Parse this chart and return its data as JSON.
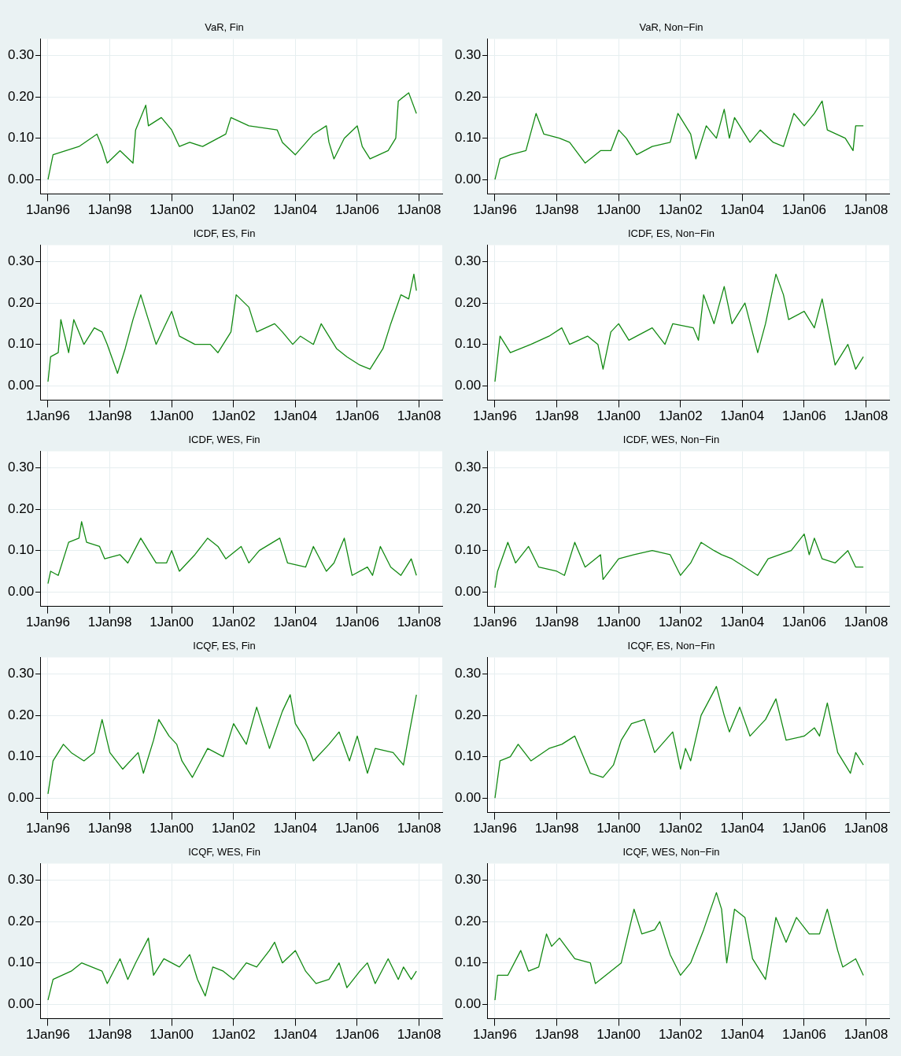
{
  "chart_data": [
    {
      "type": "line",
      "title": "VaR, Fin",
      "color": "#138a13",
      "grid": true,
      "xlim": [
        "1995-10-01",
        "2008-10-01"
      ],
      "ylim": [
        -0.035,
        0.34
      ],
      "xticks": [
        {
          "value": "1996-01-01",
          "label": "1Jan96"
        },
        {
          "value": "1998-01-01",
          "label": "1Jan98"
        },
        {
          "value": "2000-01-01",
          "label": "1Jan00"
        },
        {
          "value": "2002-01-01",
          "label": "1Jan02"
        },
        {
          "value": "2004-01-01",
          "label": "1Jan04"
        },
        {
          "value": "2006-01-01",
          "label": "1Jan06"
        },
        {
          "value": "2008-01-01",
          "label": "1Jan08"
        }
      ],
      "yticks": [
        {
          "value": 0,
          "label": "0.00"
        },
        {
          "value": 0.1,
          "label": "0.10"
        },
        {
          "value": 0.2,
          "label": "0.20"
        },
        {
          "value": 0.3,
          "label": "0.30"
        }
      ],
      "x": [
        "1996-01",
        "1996-03",
        "1997-01",
        "1997-08",
        "1997-10",
        "1997-12",
        "1998-05",
        "1998-10",
        "1998-11",
        "1999-03",
        "1999-04",
        "1999-09",
        "2000-01",
        "2000-04",
        "2000-08",
        "2001-01",
        "2001-10",
        "2001-12",
        "2002-07",
        "2003-06",
        "2003-08",
        "2004-01",
        "2004-08",
        "2005-01",
        "2005-02",
        "2005-04",
        "2005-08",
        "2006-01",
        "2006-03",
        "2006-06",
        "2007-01",
        "2007-04",
        "2007-05",
        "2007-09",
        "2007-12"
      ],
      "values": [
        0.0,
        0.06,
        0.08,
        0.11,
        0.08,
        0.04,
        0.07,
        0.04,
        0.12,
        0.18,
        0.13,
        0.15,
        0.12,
        0.08,
        0.09,
        0.08,
        0.11,
        0.15,
        0.13,
        0.12,
        0.09,
        0.06,
        0.11,
        0.13,
        0.09,
        0.05,
        0.1,
        0.13,
        0.08,
        0.05,
        0.07,
        0.1,
        0.19,
        0.21,
        0.16
      ]
    },
    {
      "type": "line",
      "title": "VaR, Non−Fin",
      "color": "#138a13",
      "grid": true,
      "xlim": [
        "1995-10-01",
        "2008-10-01"
      ],
      "ylim": [
        -0.035,
        0.34
      ],
      "xticks": [
        {
          "value": "1996-01-01",
          "label": "1Jan96"
        },
        {
          "value": "1998-01-01",
          "label": "1Jan98"
        },
        {
          "value": "2000-01-01",
          "label": "1Jan00"
        },
        {
          "value": "2002-01-01",
          "label": "1Jan02"
        },
        {
          "value": "2004-01-01",
          "label": "1Jan04"
        },
        {
          "value": "2006-01-01",
          "label": "1Jan06"
        },
        {
          "value": "2008-01-01",
          "label": "1Jan08"
        }
      ],
      "yticks": [
        {
          "value": 0,
          "label": "0.00"
        },
        {
          "value": 0.1,
          "label": "0.10"
        },
        {
          "value": 0.2,
          "label": "0.20"
        },
        {
          "value": 0.3,
          "label": "0.30"
        }
      ],
      "x": [
        "1996-01",
        "1996-03",
        "1996-07",
        "1997-01",
        "1997-05",
        "1997-08",
        "1998-02",
        "1998-06",
        "1998-12",
        "1999-06",
        "1999-10",
        "2000-01",
        "2000-04",
        "2000-08",
        "2001-02",
        "2001-09",
        "2001-12",
        "2002-05",
        "2002-07",
        "2002-11",
        "2003-03",
        "2003-06",
        "2003-08",
        "2003-10",
        "2004-04",
        "2004-08",
        "2005-01",
        "2005-05",
        "2005-09",
        "2006-01",
        "2006-05",
        "2006-08",
        "2006-10",
        "2007-05",
        "2007-08",
        "2007-09",
        "2007-12"
      ],
      "values": [
        0.0,
        0.05,
        0.06,
        0.07,
        0.16,
        0.11,
        0.1,
        0.09,
        0.04,
        0.07,
        0.07,
        0.12,
        0.1,
        0.06,
        0.08,
        0.09,
        0.16,
        0.11,
        0.05,
        0.13,
        0.1,
        0.17,
        0.1,
        0.15,
        0.09,
        0.12,
        0.09,
        0.08,
        0.16,
        0.13,
        0.16,
        0.19,
        0.12,
        0.1,
        0.07,
        0.13,
        0.13
      ]
    },
    {
      "type": "line",
      "title": "ICDF, ES, Fin",
      "color": "#138a13",
      "grid": true,
      "xlim": [
        "1995-10-01",
        "2008-10-01"
      ],
      "ylim": [
        -0.035,
        0.34
      ],
      "xticks": [
        {
          "value": "1996-01-01",
          "label": "1Jan96"
        },
        {
          "value": "1998-01-01",
          "label": "1Jan98"
        },
        {
          "value": "2000-01-01",
          "label": "1Jan00"
        },
        {
          "value": "2002-01-01",
          "label": "1Jan02"
        },
        {
          "value": "2004-01-01",
          "label": "1Jan04"
        },
        {
          "value": "2006-01-01",
          "label": "1Jan06"
        },
        {
          "value": "2008-01-01",
          "label": "1Jan08"
        }
      ],
      "yticks": [
        {
          "value": 0,
          "label": "0.00"
        },
        {
          "value": 0.1,
          "label": "0.10"
        },
        {
          "value": 0.2,
          "label": "0.20"
        },
        {
          "value": 0.3,
          "label": "0.30"
        }
      ],
      "x": [
        "1996-01",
        "1996-02",
        "1996-05",
        "1996-06",
        "1996-09",
        "1996-11",
        "1997-03",
        "1997-07",
        "1997-10",
        "1997-12",
        "1998-04",
        "1998-07",
        "1998-10",
        "1999-01",
        "1999-03",
        "1999-07",
        "2000-01",
        "2000-04",
        "2000-10",
        "2001-04",
        "2001-07",
        "2001-12",
        "2002-02",
        "2002-07",
        "2002-10",
        "2003-05",
        "2003-08",
        "2003-12",
        "2004-03",
        "2004-08",
        "2004-11",
        "2005-05",
        "2005-09",
        "2006-02",
        "2006-06",
        "2006-11",
        "2007-02",
        "2007-06",
        "2007-09",
        "2007-11",
        "2007-12"
      ],
      "values": [
        0.01,
        0.07,
        0.08,
        0.16,
        0.08,
        0.16,
        0.1,
        0.14,
        0.13,
        0.1,
        0.03,
        0.09,
        0.16,
        0.22,
        0.18,
        0.1,
        0.18,
        0.12,
        0.1,
        0.1,
        0.08,
        0.13,
        0.22,
        0.19,
        0.13,
        0.15,
        0.13,
        0.1,
        0.12,
        0.1,
        0.15,
        0.09,
        0.07,
        0.05,
        0.04,
        0.09,
        0.15,
        0.22,
        0.21,
        0.27,
        0.23
      ]
    },
    {
      "type": "line",
      "title": "ICDF, ES, Non−Fin",
      "color": "#138a13",
      "grid": true,
      "xlim": [
        "1995-10-01",
        "2008-10-01"
      ],
      "ylim": [
        -0.035,
        0.34
      ],
      "xticks": [
        {
          "value": "1996-01-01",
          "label": "1Jan96"
        },
        {
          "value": "1998-01-01",
          "label": "1Jan98"
        },
        {
          "value": "2000-01-01",
          "label": "1Jan00"
        },
        {
          "value": "2002-01-01",
          "label": "1Jan02"
        },
        {
          "value": "2004-01-01",
          "label": "1Jan04"
        },
        {
          "value": "2006-01-01",
          "label": "1Jan06"
        },
        {
          "value": "2008-01-01",
          "label": "1Jan08"
        }
      ],
      "yticks": [
        {
          "value": 0,
          "label": "0.00"
        },
        {
          "value": 0.1,
          "label": "0.10"
        },
        {
          "value": 0.2,
          "label": "0.20"
        },
        {
          "value": 0.3,
          "label": "0.30"
        }
      ],
      "x": [
        "1996-01",
        "1996-03",
        "1996-07",
        "1997-03",
        "1997-10",
        "1998-03",
        "1998-06",
        "1999-01",
        "1999-05",
        "1999-07",
        "1999-10",
        "2000-01",
        "2000-05",
        "2001-02",
        "2001-07",
        "2001-10",
        "2002-06",
        "2002-08",
        "2002-10",
        "2003-02",
        "2003-06",
        "2003-09",
        "2004-02",
        "2004-07",
        "2004-10",
        "2005-02",
        "2005-05",
        "2005-07",
        "2006-01",
        "2006-05",
        "2006-08",
        "2007-01",
        "2007-06",
        "2007-09",
        "2007-12"
      ],
      "values": [
        0.01,
        0.12,
        0.08,
        0.1,
        0.12,
        0.14,
        0.1,
        0.12,
        0.1,
        0.04,
        0.13,
        0.15,
        0.11,
        0.14,
        0.1,
        0.15,
        0.14,
        0.11,
        0.22,
        0.15,
        0.24,
        0.15,
        0.2,
        0.08,
        0.15,
        0.27,
        0.22,
        0.16,
        0.18,
        0.14,
        0.21,
        0.05,
        0.1,
        0.04,
        0.07
      ]
    },
    {
      "type": "line",
      "title": "ICDF, WES, Fin",
      "color": "#138a13",
      "grid": true,
      "xlim": [
        "1995-10-01",
        "2008-10-01"
      ],
      "ylim": [
        -0.035,
        0.34
      ],
      "xticks": [
        {
          "value": "1996-01-01",
          "label": "1Jan96"
        },
        {
          "value": "1998-01-01",
          "label": "1Jan98"
        },
        {
          "value": "2000-01-01",
          "label": "1Jan00"
        },
        {
          "value": "2002-01-01",
          "label": "1Jan02"
        },
        {
          "value": "2004-01-01",
          "label": "1Jan04"
        },
        {
          "value": "2006-01-01",
          "label": "1Jan06"
        },
        {
          "value": "2008-01-01",
          "label": "1Jan08"
        }
      ],
      "yticks": [
        {
          "value": 0,
          "label": "0.00"
        },
        {
          "value": 0.1,
          "label": "0.10"
        },
        {
          "value": 0.2,
          "label": "0.20"
        },
        {
          "value": 0.3,
          "label": "0.30"
        }
      ],
      "x": [
        "1996-01",
        "1996-02",
        "1996-05",
        "1996-09",
        "1997-01",
        "1997-02",
        "1997-04",
        "1997-09",
        "1997-11",
        "1998-05",
        "1998-08",
        "1999-01",
        "1999-04",
        "1999-07",
        "1999-11",
        "2000-01",
        "2000-04",
        "2000-10",
        "2001-03",
        "2001-07",
        "2001-10",
        "2002-04",
        "2002-07",
        "2002-11",
        "2003-07",
        "2003-10",
        "2004-05",
        "2004-08",
        "2005-01",
        "2005-04",
        "2005-08",
        "2005-11",
        "2006-05",
        "2006-07",
        "2006-10",
        "2007-02",
        "2007-06",
        "2007-10",
        "2007-12"
      ],
      "values": [
        0.02,
        0.05,
        0.04,
        0.12,
        0.13,
        0.17,
        0.12,
        0.11,
        0.08,
        0.09,
        0.07,
        0.13,
        0.1,
        0.07,
        0.07,
        0.1,
        0.05,
        0.09,
        0.13,
        0.11,
        0.08,
        0.11,
        0.07,
        0.1,
        0.13,
        0.07,
        0.06,
        0.11,
        0.05,
        0.07,
        0.13,
        0.04,
        0.06,
        0.04,
        0.11,
        0.06,
        0.04,
        0.08,
        0.04
      ]
    },
    {
      "type": "line",
      "title": "ICDF, WES, Non−Fin",
      "color": "#138a13",
      "grid": true,
      "xlim": [
        "1995-10-01",
        "2008-10-01"
      ],
      "ylim": [
        -0.035,
        0.34
      ],
      "xticks": [
        {
          "value": "1996-01-01",
          "label": "1Jan96"
        },
        {
          "value": "1998-01-01",
          "label": "1Jan98"
        },
        {
          "value": "2000-01-01",
          "label": "1Jan00"
        },
        {
          "value": "2002-01-01",
          "label": "1Jan02"
        },
        {
          "value": "2004-01-01",
          "label": "1Jan04"
        },
        {
          "value": "2006-01-01",
          "label": "1Jan06"
        },
        {
          "value": "2008-01-01",
          "label": "1Jan08"
        }
      ],
      "yticks": [
        {
          "value": 0,
          "label": "0.00"
        },
        {
          "value": 0.1,
          "label": "0.10"
        },
        {
          "value": 0.2,
          "label": "0.20"
        },
        {
          "value": 0.3,
          "label": "0.30"
        }
      ],
      "x": [
        "1996-01",
        "1996-02",
        "1996-06",
        "1996-09",
        "1997-02",
        "1997-06",
        "1998-01",
        "1998-04",
        "1998-08",
        "1998-12",
        "1999-06",
        "1999-07",
        "2000-01",
        "2000-07",
        "2001-02",
        "2001-09",
        "2002-01",
        "2002-05",
        "2002-09",
        "2003-02",
        "2003-05",
        "2003-09",
        "2004-02",
        "2004-07",
        "2004-11",
        "2005-08",
        "2006-01",
        "2006-03",
        "2006-05",
        "2006-08",
        "2007-01",
        "2007-06",
        "2007-09",
        "2007-12"
      ],
      "values": [
        0.01,
        0.05,
        0.12,
        0.07,
        0.11,
        0.06,
        0.05,
        0.04,
        0.12,
        0.06,
        0.09,
        0.03,
        0.08,
        0.09,
        0.1,
        0.09,
        0.04,
        0.07,
        0.12,
        0.1,
        0.09,
        0.08,
        0.06,
        0.04,
        0.08,
        0.1,
        0.14,
        0.09,
        0.13,
        0.08,
        0.07,
        0.1,
        0.06,
        0.06
      ]
    },
    {
      "type": "line",
      "title": "ICQF, ES, Fin",
      "color": "#138a13",
      "grid": true,
      "xlim": [
        "1995-10-01",
        "2008-10-01"
      ],
      "ylim": [
        -0.035,
        0.34
      ],
      "xticks": [
        {
          "value": "1996-01-01",
          "label": "1Jan96"
        },
        {
          "value": "1998-01-01",
          "label": "1Jan98"
        },
        {
          "value": "2000-01-01",
          "label": "1Jan00"
        },
        {
          "value": "2002-01-01",
          "label": "1Jan02"
        },
        {
          "value": "2004-01-01",
          "label": "1Jan04"
        },
        {
          "value": "2006-01-01",
          "label": "1Jan06"
        },
        {
          "value": "2008-01-01",
          "label": "1Jan08"
        }
      ],
      "yticks": [
        {
          "value": 0,
          "label": "0.00"
        },
        {
          "value": 0.1,
          "label": "0.10"
        },
        {
          "value": 0.2,
          "label": "0.20"
        },
        {
          "value": 0.3,
          "label": "0.30"
        }
      ],
      "x": [
        "1996-01",
        "1996-03",
        "1996-07",
        "1996-10",
        "1997-03",
        "1997-07",
        "1997-10",
        "1998-01",
        "1998-06",
        "1998-12",
        "1999-02",
        "1999-06",
        "1999-08",
        "1999-12",
        "2000-03",
        "2000-05",
        "2000-09",
        "2001-03",
        "2001-09",
        "2002-01",
        "2002-06",
        "2002-10",
        "2003-03",
        "2003-08",
        "2003-11",
        "2004-01",
        "2004-05",
        "2004-08",
        "2005-02",
        "2005-06",
        "2005-10",
        "2006-01",
        "2006-05",
        "2006-08",
        "2007-03",
        "2007-07",
        "2007-09",
        "2007-12"
      ],
      "values": [
        0.01,
        0.09,
        0.13,
        0.11,
        0.09,
        0.11,
        0.19,
        0.11,
        0.07,
        0.11,
        0.06,
        0.14,
        0.19,
        0.15,
        0.13,
        0.09,
        0.05,
        0.12,
        0.1,
        0.18,
        0.13,
        0.22,
        0.12,
        0.21,
        0.25,
        0.18,
        0.14,
        0.09,
        0.13,
        0.16,
        0.09,
        0.15,
        0.06,
        0.12,
        0.11,
        0.08,
        0.15,
        0.25
      ]
    },
    {
      "type": "line",
      "title": "ICQF, ES, Non−Fin",
      "color": "#138a13",
      "grid": true,
      "xlim": [
        "1995-10-01",
        "2008-10-01"
      ],
      "ylim": [
        -0.035,
        0.34
      ],
      "xticks": [
        {
          "value": "1996-01-01",
          "label": "1Jan96"
        },
        {
          "value": "1998-01-01",
          "label": "1Jan98"
        },
        {
          "value": "2000-01-01",
          "label": "1Jan00"
        },
        {
          "value": "2002-01-01",
          "label": "1Jan02"
        },
        {
          "value": "2004-01-01",
          "label": "1Jan04"
        },
        {
          "value": "2006-01-01",
          "label": "1Jan06"
        },
        {
          "value": "2008-01-01",
          "label": "1Jan08"
        }
      ],
      "yticks": [
        {
          "value": 0,
          "label": "0.00"
        },
        {
          "value": 0.1,
          "label": "0.10"
        },
        {
          "value": 0.2,
          "label": "0.20"
        },
        {
          "value": 0.3,
          "label": "0.30"
        }
      ],
      "x": [
        "1996-01",
        "1996-03",
        "1996-07",
        "1996-10",
        "1997-03",
        "1997-10",
        "1998-03",
        "1998-08",
        "1999-02",
        "1999-07",
        "1999-11",
        "2000-02",
        "2000-06",
        "2000-11",
        "2001-03",
        "2001-10",
        "2002-01",
        "2002-03",
        "2002-05",
        "2002-09",
        "2003-03",
        "2003-06",
        "2003-08",
        "2003-12",
        "2004-04",
        "2004-10",
        "2005-02",
        "2005-06",
        "2006-01",
        "2006-05",
        "2006-07",
        "2006-10",
        "2007-02",
        "2007-07",
        "2007-09",
        "2007-12"
      ],
      "values": [
        0.0,
        0.09,
        0.1,
        0.13,
        0.09,
        0.12,
        0.13,
        0.15,
        0.06,
        0.05,
        0.08,
        0.14,
        0.18,
        0.19,
        0.11,
        0.16,
        0.07,
        0.12,
        0.09,
        0.2,
        0.27,
        0.2,
        0.16,
        0.22,
        0.15,
        0.19,
        0.24,
        0.14,
        0.15,
        0.17,
        0.15,
        0.23,
        0.11,
        0.06,
        0.11,
        0.08
      ]
    },
    {
      "type": "line",
      "title": "ICQF, WES, Fin",
      "color": "#138a13",
      "grid": true,
      "xlim": [
        "1995-10-01",
        "2008-10-01"
      ],
      "ylim": [
        -0.035,
        0.34
      ],
      "xticks": [
        {
          "value": "1996-01-01",
          "label": "1Jan96"
        },
        {
          "value": "1998-01-01",
          "label": "1Jan98"
        },
        {
          "value": "2000-01-01",
          "label": "1Jan00"
        },
        {
          "value": "2002-01-01",
          "label": "1Jan02"
        },
        {
          "value": "2004-01-01",
          "label": "1Jan04"
        },
        {
          "value": "2006-01-01",
          "label": "1Jan06"
        },
        {
          "value": "2008-01-01",
          "label": "1Jan08"
        }
      ],
      "yticks": [
        {
          "value": 0,
          "label": "0.00"
        },
        {
          "value": 0.1,
          "label": "0.10"
        },
        {
          "value": 0.2,
          "label": "0.20"
        },
        {
          "value": 0.3,
          "label": "0.30"
        }
      ],
      "x": [
        "1996-01",
        "1996-03",
        "1996-10",
        "1997-02",
        "1997-10",
        "1997-12",
        "1998-05",
        "1998-08",
        "1998-11",
        "1999-04",
        "1999-06",
        "1999-10",
        "2000-04",
        "2000-08",
        "2000-11",
        "2001-02",
        "2001-05",
        "2001-09",
        "2002-01",
        "2002-06",
        "2002-10",
        "2003-03",
        "2003-05",
        "2003-08",
        "2004-01",
        "2004-05",
        "2004-09",
        "2005-02",
        "2005-06",
        "2005-09",
        "2006-02",
        "2006-05",
        "2006-08",
        "2007-01",
        "2007-05",
        "2007-07",
        "2007-10",
        "2007-12"
      ],
      "values": [
        0.01,
        0.06,
        0.08,
        0.1,
        0.08,
        0.05,
        0.11,
        0.06,
        0.1,
        0.16,
        0.07,
        0.11,
        0.09,
        0.12,
        0.06,
        0.02,
        0.09,
        0.08,
        0.06,
        0.1,
        0.09,
        0.13,
        0.15,
        0.1,
        0.13,
        0.08,
        0.05,
        0.06,
        0.1,
        0.04,
        0.08,
        0.1,
        0.05,
        0.11,
        0.06,
        0.09,
        0.06,
        0.08
      ]
    },
    {
      "type": "line",
      "title": "ICQF, WES, Non−Fin",
      "color": "#138a13",
      "grid": true,
      "xlim": [
        "1995-10-01",
        "2008-10-01"
      ],
      "ylim": [
        -0.035,
        0.34
      ],
      "xticks": [
        {
          "value": "1996-01-01",
          "label": "1Jan96"
        },
        {
          "value": "1998-01-01",
          "label": "1Jan98"
        },
        {
          "value": "2000-01-01",
          "label": "1Jan00"
        },
        {
          "value": "2002-01-01",
          "label": "1Jan02"
        },
        {
          "value": "2004-01-01",
          "label": "1Jan04"
        },
        {
          "value": "2006-01-01",
          "label": "1Jan06"
        },
        {
          "value": "2008-01-01",
          "label": "1Jan08"
        }
      ],
      "yticks": [
        {
          "value": 0,
          "label": "0.00"
        },
        {
          "value": 0.1,
          "label": "0.10"
        },
        {
          "value": 0.2,
          "label": "0.20"
        },
        {
          "value": 0.3,
          "label": "0.30"
        }
      ],
      "x": [
        "1996-01",
        "1996-02",
        "1996-06",
        "1996-11",
        "1997-02",
        "1997-06",
        "1997-09",
        "1997-11",
        "1998-02",
        "1998-08",
        "1999-02",
        "1999-04",
        "1999-08",
        "2000-02",
        "2000-07",
        "2000-10",
        "2001-03",
        "2001-05",
        "2001-09",
        "2002-01",
        "2002-05",
        "2002-10",
        "2003-03",
        "2003-05",
        "2003-07",
        "2003-10",
        "2004-02",
        "2004-05",
        "2004-10",
        "2005-02",
        "2005-06",
        "2005-10",
        "2006-03",
        "2006-07",
        "2006-10",
        "2007-02",
        "2007-04",
        "2007-09",
        "2007-12"
      ],
      "values": [
        0.01,
        0.07,
        0.07,
        0.13,
        0.08,
        0.09,
        0.17,
        0.14,
        0.16,
        0.11,
        0.1,
        0.05,
        0.07,
        0.1,
        0.23,
        0.17,
        0.18,
        0.2,
        0.12,
        0.07,
        0.1,
        0.18,
        0.27,
        0.23,
        0.1,
        0.23,
        0.21,
        0.11,
        0.06,
        0.21,
        0.15,
        0.21,
        0.17,
        0.17,
        0.23,
        0.13,
        0.09,
        0.11,
        0.07
      ]
    }
  ]
}
